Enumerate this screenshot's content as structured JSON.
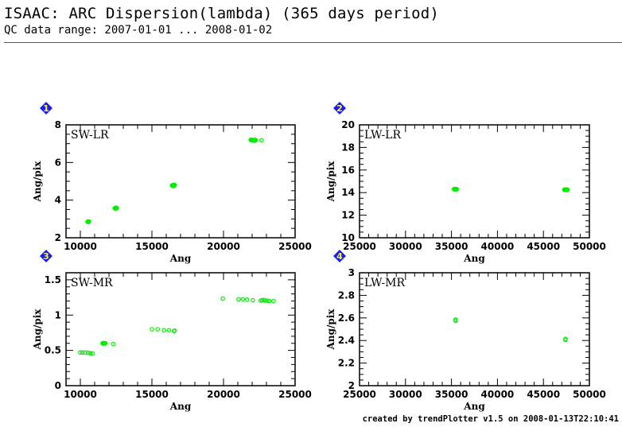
{
  "header": {
    "title": "ISAAC: ARC Dispersion(lambda) (365 days period)",
    "subtitle": "QC data range: 2007-01-01 ... 2008-01-02"
  },
  "footer": "created by trendPlotter v1.5 on 2008-01-13T22:10:41",
  "colors": {
    "points": "#00ee00",
    "badge": "#1a1aff",
    "badge_text": "#ffff00",
    "frame": "#000000"
  },
  "chart_data": [
    {
      "type": "scatter",
      "panel_number": "1",
      "title": "SW-LR",
      "xlabel": "Ang",
      "ylabel": "Ang/pix",
      "xlim": [
        9000,
        25000
      ],
      "ylim": [
        2,
        8
      ],
      "xticks": [
        10000,
        15000,
        20000,
        25000
      ],
      "xtick_labels": [
        "10000",
        "15000",
        "20000",
        "25000"
      ],
      "yticks": [
        2,
        4,
        6,
        8
      ],
      "ytick_labels": [
        "2",
        "4",
        "6",
        "8"
      ],
      "x_minor_step": 1000,
      "y_minor_step": 0.5,
      "points": [
        {
          "x": 10550,
          "y": 2.85,
          "filled": true
        },
        {
          "x": 10600,
          "y": 2.86,
          "filled": false
        },
        {
          "x": 12450,
          "y": 3.57,
          "filled": true
        },
        {
          "x": 12500,
          "y": 3.58,
          "filled": true
        },
        {
          "x": 16450,
          "y": 4.78,
          "filled": true
        },
        {
          "x": 16550,
          "y": 4.8,
          "filled": true
        },
        {
          "x": 16500,
          "y": 4.76,
          "filled": true
        },
        {
          "x": 21950,
          "y": 7.2,
          "filled": true
        },
        {
          "x": 22050,
          "y": 7.18,
          "filled": true
        },
        {
          "x": 22150,
          "y": 7.17,
          "filled": true
        },
        {
          "x": 22200,
          "y": 7.19,
          "filled": true
        },
        {
          "x": 22650,
          "y": 7.18,
          "filled": false
        }
      ]
    },
    {
      "type": "scatter",
      "panel_number": "2",
      "title": "LW-LR",
      "xlabel": "Ang",
      "ylabel": "Ang/pix",
      "xlim": [
        25000,
        50000
      ],
      "ylim": [
        10,
        20
      ],
      "xticks": [
        25000,
        30000,
        35000,
        40000,
        45000,
        50000
      ],
      "xtick_labels": [
        "25000",
        "30000",
        "35000",
        "40000",
        "45000",
        "50000"
      ],
      "yticks": [
        10,
        12,
        14,
        16,
        18,
        20
      ],
      "ytick_labels": [
        "10",
        "12",
        "14",
        "16",
        "18",
        "20"
      ],
      "x_minor_step": 1000,
      "y_minor_step": 0.5,
      "points": [
        {
          "x": 35350,
          "y": 14.3,
          "filled": true
        },
        {
          "x": 35500,
          "y": 14.3,
          "filled": true
        },
        {
          "x": 47350,
          "y": 14.25,
          "filled": true
        },
        {
          "x": 47550,
          "y": 14.25,
          "filled": true
        }
      ]
    },
    {
      "type": "scatter",
      "panel_number": "3",
      "title": "SW-MR",
      "xlabel": "Ang",
      "ylabel": "Ang/pix",
      "xlim": [
        9000,
        25000
      ],
      "ylim": [
        0,
        1.6
      ],
      "xticks": [
        10000,
        15000,
        20000,
        25000
      ],
      "xtick_labels": [
        "10000",
        "15000",
        "20000",
        "25000"
      ],
      "yticks": [
        0,
        0.5,
        1,
        1.5
      ],
      "ytick_labels": [
        "0",
        "0.5",
        "1",
        "1.5"
      ],
      "x_minor_step": 1000,
      "y_minor_step": 0.1,
      "points": [
        {
          "x": 10000,
          "y": 0.47,
          "filled": false
        },
        {
          "x": 10150,
          "y": 0.47,
          "filled": false
        },
        {
          "x": 10350,
          "y": 0.47,
          "filled": false
        },
        {
          "x": 10550,
          "y": 0.465,
          "filled": false
        },
        {
          "x": 10700,
          "y": 0.46,
          "filled": false
        },
        {
          "x": 10850,
          "y": 0.455,
          "filled": false
        },
        {
          "x": 11600,
          "y": 0.6,
          "filled": true
        },
        {
          "x": 11700,
          "y": 0.6,
          "filled": true
        },
        {
          "x": 12300,
          "y": 0.59,
          "filled": false
        },
        {
          "x": 15000,
          "y": 0.8,
          "filled": false
        },
        {
          "x": 15400,
          "y": 0.8,
          "filled": false
        },
        {
          "x": 15850,
          "y": 0.785,
          "filled": false
        },
        {
          "x": 16200,
          "y": 0.785,
          "filled": false
        },
        {
          "x": 16550,
          "y": 0.775,
          "filled": false
        },
        {
          "x": 16580,
          "y": 0.78,
          "filled": false
        },
        {
          "x": 19950,
          "y": 1.235,
          "filled": false
        },
        {
          "x": 21050,
          "y": 1.225,
          "filled": false
        },
        {
          "x": 21350,
          "y": 1.225,
          "filled": false
        },
        {
          "x": 21650,
          "y": 1.22,
          "filled": false
        },
        {
          "x": 22050,
          "y": 1.21,
          "filled": false
        },
        {
          "x": 22600,
          "y": 1.205,
          "filled": false
        },
        {
          "x": 22700,
          "y": 1.21,
          "filled": false
        },
        {
          "x": 22800,
          "y": 1.215,
          "filled": false
        },
        {
          "x": 22900,
          "y": 1.205,
          "filled": false
        },
        {
          "x": 23050,
          "y": 1.205,
          "filled": false
        },
        {
          "x": 23200,
          "y": 1.2,
          "filled": false
        },
        {
          "x": 23500,
          "y": 1.2,
          "filled": false
        }
      ]
    },
    {
      "type": "scatter",
      "panel_number": "4",
      "title": "LW-MR",
      "xlabel": "Ang",
      "ylabel": "Ang/pix",
      "xlim": [
        25000,
        50000
      ],
      "ylim": [
        2,
        3
      ],
      "xticks": [
        25000,
        30000,
        35000,
        40000,
        45000,
        50000
      ],
      "xtick_labels": [
        "25000",
        "30000",
        "35000",
        "40000",
        "45000",
        "50000"
      ],
      "yticks": [
        2,
        2.2,
        2.4,
        2.6,
        2.8,
        3
      ],
      "ytick_labels": [
        "2",
        "2.2",
        "2.4",
        "2.6",
        "2.8",
        "3"
      ],
      "x_minor_step": 1000,
      "y_minor_step": 0.05,
      "points": [
        {
          "x": 35450,
          "y": 2.585,
          "filled": false
        },
        {
          "x": 35450,
          "y": 2.575,
          "filled": false
        },
        {
          "x": 47400,
          "y": 2.415,
          "filled": false
        },
        {
          "x": 47400,
          "y": 2.405,
          "filled": false
        }
      ]
    }
  ]
}
